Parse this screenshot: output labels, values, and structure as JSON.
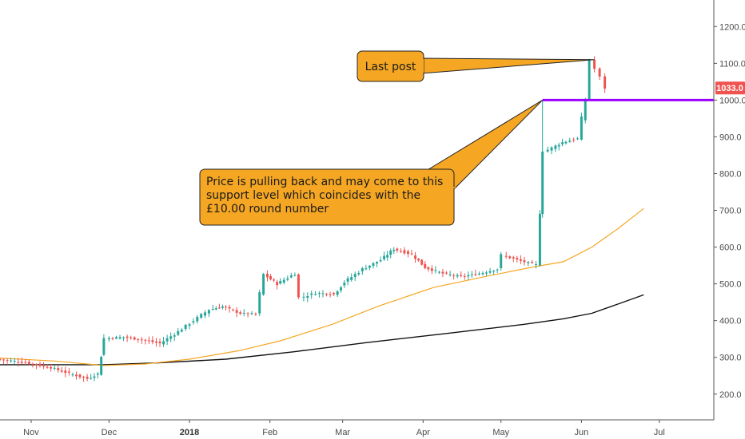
{
  "chart_data": {
    "type": "candlestick",
    "ylim": [
      130,
      1255
    ],
    "y_ticks": [
      "1200.0",
      "1100.0",
      "1000.0",
      "900.0",
      "800.0",
      "700.0",
      "600.0",
      "500.0",
      "400.0",
      "300.0",
      "200.0"
    ],
    "x_ticks": [
      {
        "label": "Nov",
        "date": "2017-11-01",
        "bold": false
      },
      {
        "label": "Dec",
        "date": "2017-12-01",
        "bold": false
      },
      {
        "label": "2018",
        "date": "2018-01-01",
        "bold": true
      },
      {
        "label": "Feb",
        "date": "2018-02-01",
        "bold": false
      },
      {
        "label": "Mar",
        "date": "2018-03-01",
        "bold": false
      },
      {
        "label": "Apr",
        "date": "2018-04-01",
        "bold": false
      },
      {
        "label": "May",
        "date": "2018-05-01",
        "bold": false
      },
      {
        "label": "Jun",
        "date": "2018-06-01",
        "bold": false
      },
      {
        "label": "Jul",
        "date": "2018-07-01",
        "bold": false
      }
    ],
    "x_start": "2017-10-20",
    "x_end": "2018-07-22",
    "last_price": "1033.0",
    "colors": {
      "up": "#26a69a",
      "down": "#ef5350",
      "ma_fast": "#f5a623",
      "ma_slow": "#111111",
      "support": "#9c00ff",
      "badge": "#ef5350",
      "callout_fill": "#f5a623"
    },
    "support_level": 1000,
    "support_start": "2018-05-17",
    "candles_anchor": [
      [
        "2017-10-20",
        295
      ],
      [
        "2017-10-27",
        290
      ],
      [
        "2017-11-03",
        282
      ],
      [
        "2017-11-10",
        272
      ],
      [
        "2017-11-17",
        256
      ],
      [
        "2017-11-24",
        242
      ],
      [
        "2017-11-28",
        255
      ],
      [
        "2017-11-29",
        305
      ],
      [
        "2017-12-01",
        352
      ],
      [
        "2017-12-08",
        355
      ],
      [
        "2017-12-15",
        348
      ],
      [
        "2017-12-22",
        338
      ],
      [
        "2017-12-29",
        370
      ],
      [
        "2018-01-04",
        400
      ],
      [
        "2018-01-10",
        430
      ],
      [
        "2018-01-15",
        438
      ],
      [
        "2018-01-22",
        420
      ],
      [
        "2018-01-28",
        418
      ],
      [
        "2018-01-31",
        525
      ],
      [
        "2018-02-05",
        500
      ],
      [
        "2018-02-12",
        528
      ],
      [
        "2018-02-14",
        462
      ],
      [
        "2018-02-20",
        475
      ],
      [
        "2018-02-27",
        472
      ],
      [
        "2018-03-03",
        505
      ],
      [
        "2018-03-10",
        540
      ],
      [
        "2018-03-17",
        565
      ],
      [
        "2018-03-22",
        595
      ],
      [
        "2018-03-29",
        580
      ],
      [
        "2018-04-03",
        545
      ],
      [
        "2018-04-10",
        528
      ],
      [
        "2018-04-17",
        520
      ],
      [
        "2018-04-24",
        528
      ],
      [
        "2018-05-01",
        540
      ],
      [
        "2018-05-03",
        578
      ],
      [
        "2018-05-10",
        562
      ],
      [
        "2018-05-16",
        552
      ],
      [
        "2018-05-17",
        700
      ],
      [
        "2018-05-19",
        860
      ],
      [
        "2018-05-22",
        870
      ],
      [
        "2018-05-26",
        885
      ],
      [
        "2018-06-01",
        895
      ],
      [
        "2018-06-04",
        1000
      ],
      [
        "2018-06-06",
        1110
      ],
      [
        "2018-06-08",
        1085
      ],
      [
        "2018-06-10",
        1062
      ],
      [
        "2018-06-12",
        1033
      ]
    ],
    "ma_fast": [
      [
        "2017-10-20",
        298
      ],
      [
        "2017-11-10",
        290
      ],
      [
        "2017-11-29",
        278
      ],
      [
        "2017-12-15",
        282
      ],
      [
        "2018-01-01",
        295
      ],
      [
        "2018-01-20",
        318
      ],
      [
        "2018-02-05",
        345
      ],
      [
        "2018-02-25",
        390
      ],
      [
        "2018-03-15",
        440
      ],
      [
        "2018-04-05",
        490
      ],
      [
        "2018-04-25",
        520
      ],
      [
        "2018-05-15",
        548
      ],
      [
        "2018-05-25",
        560
      ],
      [
        "2018-06-05",
        600
      ],
      [
        "2018-06-15",
        650
      ],
      [
        "2018-06-25",
        705
      ]
    ],
    "ma_slow": [
      [
        "2017-10-20",
        280
      ],
      [
        "2017-11-29",
        280
      ],
      [
        "2017-12-20",
        285
      ],
      [
        "2018-01-15",
        295
      ],
      [
        "2018-02-10",
        315
      ],
      [
        "2018-03-10",
        340
      ],
      [
        "2018-04-10",
        365
      ],
      [
        "2018-05-10",
        390
      ],
      [
        "2018-05-25",
        405
      ],
      [
        "2018-06-05",
        420
      ],
      [
        "2018-06-15",
        445
      ],
      [
        "2018-06-25",
        470
      ]
    ]
  },
  "annotations": [
    {
      "id": "last-post",
      "lines": [
        "Last post"
      ],
      "target": [
        "2018-06-06",
        1110
      ]
    },
    {
      "id": "support-note",
      "lines": [
        "Price is pulling back and may come to this",
        "support level which coincides with the",
        "£10.00 round number"
      ],
      "target": [
        "2018-05-17",
        1000
      ]
    }
  ]
}
